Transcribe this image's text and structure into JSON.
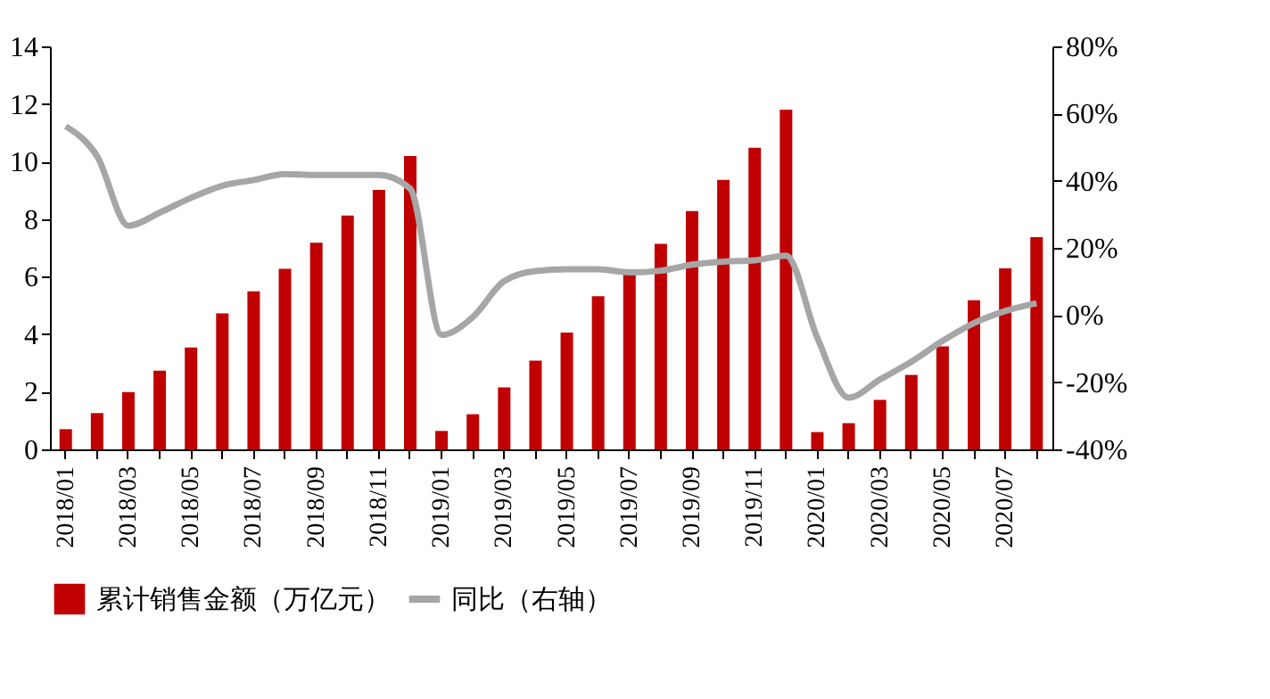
{
  "chart_data": {
    "type": "bar",
    "categories": [
      "2018/01",
      null,
      "2018/03",
      null,
      "2018/05",
      null,
      "2018/07",
      null,
      "2018/09",
      null,
      "2018/11",
      null,
      "2019/01",
      null,
      "2019/03",
      null,
      "2019/05",
      null,
      "2019/07",
      null,
      "2019/09",
      null,
      "2019/11",
      null,
      "2020/01",
      null,
      "2020/03",
      null,
      "2020/05",
      null,
      "2020/07",
      null
    ],
    "series": [
      {
        "name": "累计销售金额（万亿元）",
        "color": "#c00000",
        "values": [
          0.7,
          1.26,
          1.99,
          2.73,
          3.54,
          4.72,
          5.49,
          6.27,
          7.18,
          8.12,
          9.01,
          10.19,
          0.64,
          1.22,
          2.15,
          3.08,
          4.06,
          5.32,
          6.11,
          7.14,
          8.28,
          9.36,
          10.48,
          11.8,
          0.6,
          0.91,
          1.72,
          2.59,
          3.58,
          5.18,
          6.29,
          7.37
        ]
      },
      {
        "name": "同比（右轴）",
        "type": "line",
        "axis": "y2",
        "color": "#a6a6a6",
        "values": [
          56.2,
          47.3,
          26.6,
          30.5,
          34.9,
          38.5,
          40.2,
          42,
          41.7,
          41.7,
          41.7,
          37.6,
          -5.9,
          -0.6,
          10.1,
          13.1,
          13.6,
          13.6,
          12.7,
          13.2,
          15,
          15.9,
          16.3,
          17.7,
          -6.8,
          -24.6,
          -19.2,
          -13.9,
          -7.7,
          -2.4,
          1.2,
          3.5
        ]
      }
    ],
    "ylim": [
      0,
      14
    ],
    "yticks": [
      0,
      2,
      4,
      6,
      8,
      10,
      12,
      14
    ],
    "y2lim": [
      -40,
      80
    ],
    "y2ticks": [
      {
        "value": -40,
        "label": "-40%"
      },
      {
        "value": -20,
        "label": "-20%"
      },
      {
        "value": 0,
        "label": "0%"
      },
      {
        "value": 20,
        "label": "20%"
      },
      {
        "value": 40,
        "label": "40%"
      },
      {
        "value": 60,
        "label": "60%"
      },
      {
        "value": 80,
        "label": "80%"
      }
    ],
    "grid": false,
    "legend": "bottom",
    "marker": "none",
    "line_style": "solid"
  }
}
